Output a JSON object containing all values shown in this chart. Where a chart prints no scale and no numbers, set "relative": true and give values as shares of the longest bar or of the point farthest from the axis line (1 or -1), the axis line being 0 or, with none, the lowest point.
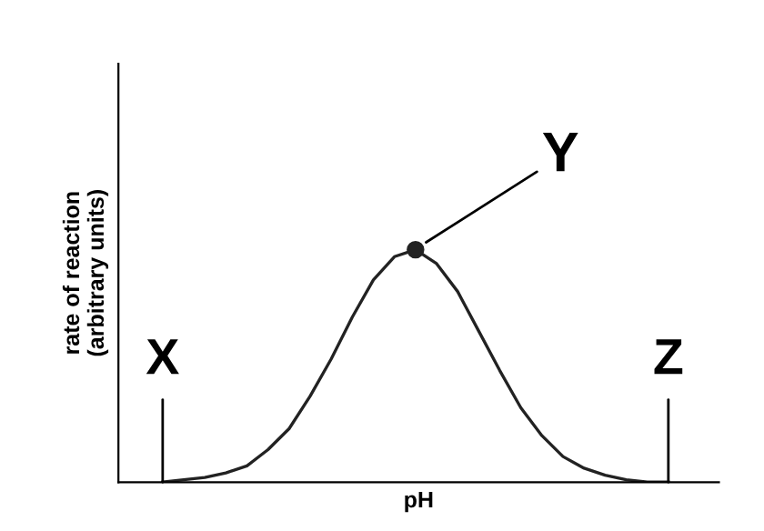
{
  "chart_data": {
    "type": "line",
    "relative": true,
    "xlabel": "pH",
    "ylabel": "rate of reaction\n(arbitrary units)",
    "categories": [
      null,
      null,
      null,
      null,
      null,
      null,
      null,
      null,
      null,
      null,
      null,
      null,
      null,
      null,
      null,
      null,
      null,
      null,
      null,
      null,
      null,
      null,
      null,
      null,
      null
    ],
    "series": [
      {
        "color": "#222222",
        "values": [
          0,
          0.01,
          0.02,
          0.04,
          0.07,
          0.14,
          0.23,
          0.37,
          0.53,
          0.71,
          0.87,
          0.97,
          1.0,
          0.94,
          0.82,
          0.65,
          0.48,
          0.32,
          0.2,
          0.11,
          0.06,
          0.03,
          0.01,
          0,
          0
        ]
      }
    ],
    "annotations": [
      "X",
      "Y",
      "Z"
    ]
  }
}
